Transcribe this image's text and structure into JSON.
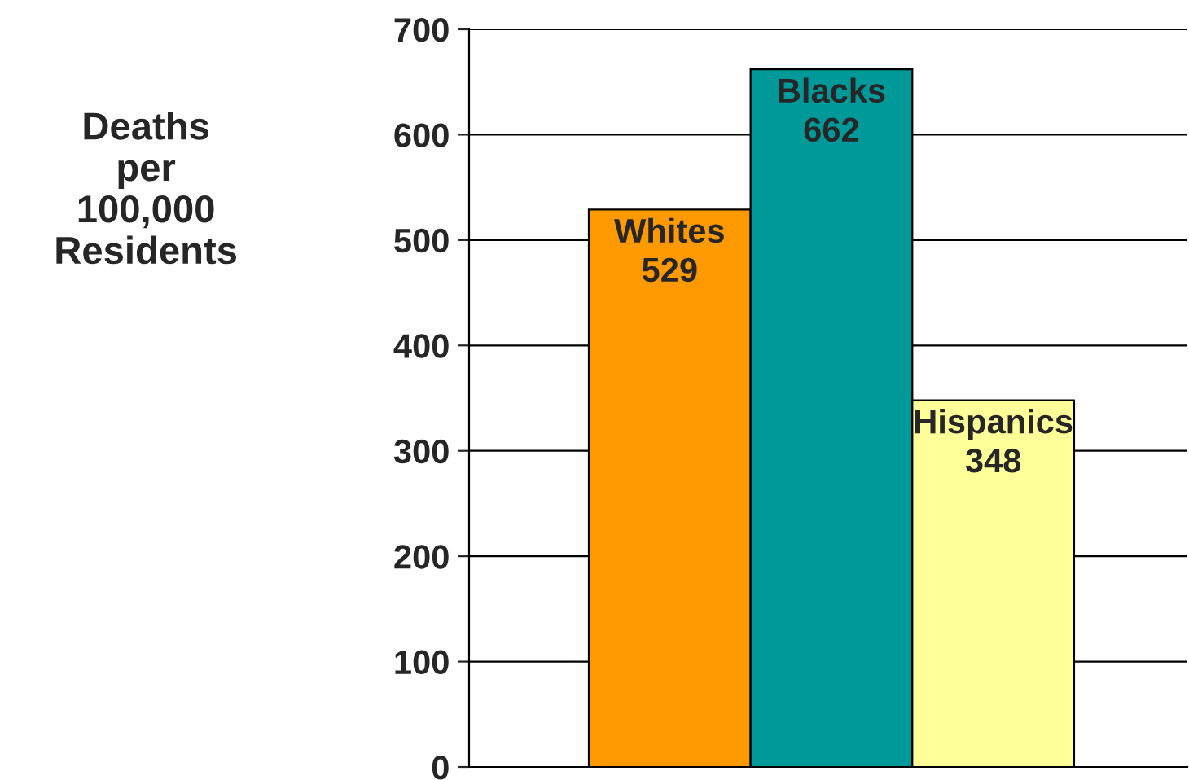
{
  "chart_data": {
    "type": "bar",
    "ylabel": "Deaths\nper\n100,000\nResidents",
    "categories": [
      "Whites",
      "Blacks",
      "Hispanics"
    ],
    "values": [
      529,
      662,
      348
    ],
    "colors": [
      "#ff9900",
      "#009999",
      "#ffff99"
    ],
    "ylim": [
      0,
      700
    ],
    "yticks": [
      0,
      100,
      200,
      300,
      400,
      500,
      600,
      700
    ],
    "grid": "y",
    "data_labels": true
  }
}
